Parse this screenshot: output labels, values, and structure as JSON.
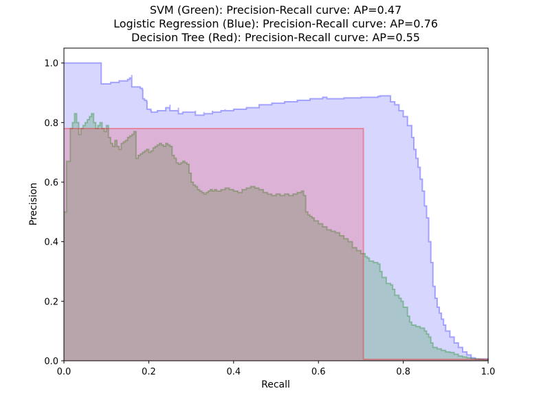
{
  "chart_data": {
    "type": "area",
    "title_lines": [
      "SVM (Green): Precision-Recall curve: AP=0.47",
      "Logistic Regression (Blue): Precision-Recall curve: AP=0.76",
      "Decision Tree (Red): Precision-Recall curve: AP=0.55"
    ],
    "xlabel": "Recall",
    "ylabel": "Precision",
    "xlim": [
      0.0,
      1.0
    ],
    "ylim": [
      0.0,
      1.05
    ],
    "xticks": [
      "0.0",
      "0.2",
      "0.4",
      "0.6",
      "0.8",
      "1.0"
    ],
    "yticks": [
      "0.0",
      "0.2",
      "0.4",
      "0.6",
      "0.8",
      "1.0"
    ],
    "grid": false,
    "step": "post",
    "series": [
      {
        "color": "#0000ff",
        "fill_alpha": 0.16,
        "points": [
          [
            0.0,
            1.0
          ],
          [
            0.088,
            1.0
          ],
          [
            0.088,
            0.93
          ],
          [
            0.11,
            0.935
          ],
          [
            0.13,
            0.94
          ],
          [
            0.15,
            0.945
          ],
          [
            0.155,
            0.95
          ],
          [
            0.16,
            0.96
          ],
          [
            0.16,
            0.92
          ],
          [
            0.18,
            0.915
          ],
          [
            0.185,
            0.91
          ],
          [
            0.186,
            0.88
          ],
          [
            0.19,
            0.875
          ],
          [
            0.195,
            0.87
          ],
          [
            0.196,
            0.845
          ],
          [
            0.2,
            0.845
          ],
          [
            0.205,
            0.84
          ],
          [
            0.206,
            0.835
          ],
          [
            0.22,
            0.84
          ],
          [
            0.24,
            0.85
          ],
          [
            0.25,
            0.86
          ],
          [
            0.25,
            0.84
          ],
          [
            0.27,
            0.85
          ],
          [
            0.27,
            0.83
          ],
          [
            0.28,
            0.835
          ],
          [
            0.29,
            0.835
          ],
          [
            0.31,
            0.84
          ],
          [
            0.31,
            0.825
          ],
          [
            0.33,
            0.835
          ],
          [
            0.33,
            0.83
          ],
          [
            0.35,
            0.84
          ],
          [
            0.35,
            0.835
          ],
          [
            0.37,
            0.84
          ],
          [
            0.38,
            0.845
          ],
          [
            0.38,
            0.84
          ],
          [
            0.4,
            0.84
          ],
          [
            0.4,
            0.845
          ],
          [
            0.43,
            0.85
          ],
          [
            0.46,
            0.86
          ],
          [
            0.49,
            0.865
          ],
          [
            0.52,
            0.87
          ],
          [
            0.55,
            0.875
          ],
          [
            0.58,
            0.88
          ],
          [
            0.61,
            0.885
          ],
          [
            0.62,
            0.88
          ],
          [
            0.66,
            0.883
          ],
          [
            0.7,
            0.885
          ],
          [
            0.74,
            0.888
          ],
          [
            0.745,
            0.89
          ],
          [
            0.77,
            0.87
          ],
          [
            0.78,
            0.86
          ],
          [
            0.79,
            0.84
          ],
          [
            0.8,
            0.82
          ],
          [
            0.81,
            0.79
          ],
          [
            0.82,
            0.75
          ],
          [
            0.825,
            0.71
          ],
          [
            0.83,
            0.68
          ],
          [
            0.835,
            0.65
          ],
          [
            0.84,
            0.61
          ],
          [
            0.845,
            0.57
          ],
          [
            0.85,
            0.52
          ],
          [
            0.855,
            0.48
          ],
          [
            0.86,
            0.4
          ],
          [
            0.865,
            0.33
          ],
          [
            0.87,
            0.25
          ],
          [
            0.875,
            0.21
          ],
          [
            0.88,
            0.18
          ],
          [
            0.885,
            0.16
          ],
          [
            0.89,
            0.14
          ],
          [
            0.895,
            0.12
          ],
          [
            0.9,
            0.1
          ],
          [
            0.91,
            0.08
          ],
          [
            0.92,
            0.06
          ],
          [
            0.93,
            0.045
          ],
          [
            0.94,
            0.03
          ],
          [
            0.95,
            0.02
          ],
          [
            0.96,
            0.01
          ],
          [
            0.97,
            0.006
          ],
          [
            1.0,
            0.003
          ]
        ]
      },
      {
        "color": "#008000",
        "fill_alpha": 0.2,
        "points": [
          [
            0.0,
            0.5
          ],
          [
            0.006,
            0.67
          ],
          [
            0.015,
            0.78
          ],
          [
            0.02,
            0.8
          ],
          [
            0.025,
            0.83
          ],
          [
            0.03,
            0.8
          ],
          [
            0.035,
            0.76
          ],
          [
            0.04,
            0.78
          ],
          [
            0.045,
            0.79
          ],
          [
            0.05,
            0.8
          ],
          [
            0.055,
            0.81
          ],
          [
            0.06,
            0.82
          ],
          [
            0.065,
            0.83
          ],
          [
            0.07,
            0.8
          ],
          [
            0.075,
            0.78
          ],
          [
            0.08,
            0.79
          ],
          [
            0.085,
            0.8
          ],
          [
            0.09,
            0.78
          ],
          [
            0.095,
            0.77
          ],
          [
            0.1,
            0.79
          ],
          [
            0.105,
            0.75
          ],
          [
            0.11,
            0.73
          ],
          [
            0.115,
            0.72
          ],
          [
            0.12,
            0.74
          ],
          [
            0.125,
            0.72
          ],
          [
            0.13,
            0.71
          ],
          [
            0.135,
            0.73
          ],
          [
            0.14,
            0.735
          ],
          [
            0.145,
            0.74
          ],
          [
            0.15,
            0.75
          ],
          [
            0.155,
            0.755
          ],
          [
            0.16,
            0.76
          ],
          [
            0.165,
            0.77
          ],
          [
            0.17,
            0.68
          ],
          [
            0.175,
            0.69
          ],
          [
            0.18,
            0.695
          ],
          [
            0.185,
            0.7
          ],
          [
            0.19,
            0.705
          ],
          [
            0.195,
            0.71
          ],
          [
            0.2,
            0.7
          ],
          [
            0.205,
            0.705
          ],
          [
            0.21,
            0.715
          ],
          [
            0.215,
            0.72
          ],
          [
            0.22,
            0.725
          ],
          [
            0.225,
            0.73
          ],
          [
            0.23,
            0.725
          ],
          [
            0.235,
            0.72
          ],
          [
            0.24,
            0.73
          ],
          [
            0.245,
            0.725
          ],
          [
            0.25,
            0.72
          ],
          [
            0.255,
            0.69
          ],
          [
            0.26,
            0.68
          ],
          [
            0.265,
            0.665
          ],
          [
            0.27,
            0.66
          ],
          [
            0.275,
            0.665
          ],
          [
            0.28,
            0.67
          ],
          [
            0.285,
            0.665
          ],
          [
            0.29,
            0.66
          ],
          [
            0.295,
            0.63
          ],
          [
            0.3,
            0.6
          ],
          [
            0.305,
            0.59
          ],
          [
            0.31,
            0.585
          ],
          [
            0.315,
            0.575
          ],
          [
            0.32,
            0.57
          ],
          [
            0.325,
            0.565
          ],
          [
            0.33,
            0.56
          ],
          [
            0.335,
            0.565
          ],
          [
            0.34,
            0.57
          ],
          [
            0.345,
            0.575
          ],
          [
            0.35,
            0.57
          ],
          [
            0.355,
            0.575
          ],
          [
            0.36,
            0.57
          ],
          [
            0.37,
            0.575
          ],
          [
            0.38,
            0.58
          ],
          [
            0.39,
            0.575
          ],
          [
            0.4,
            0.57
          ],
          [
            0.41,
            0.565
          ],
          [
            0.42,
            0.575
          ],
          [
            0.43,
            0.58
          ],
          [
            0.44,
            0.585
          ],
          [
            0.45,
            0.58
          ],
          [
            0.46,
            0.575
          ],
          [
            0.47,
            0.565
          ],
          [
            0.48,
            0.56
          ],
          [
            0.49,
            0.555
          ],
          [
            0.5,
            0.56
          ],
          [
            0.51,
            0.555
          ],
          [
            0.52,
            0.56
          ],
          [
            0.53,
            0.555
          ],
          [
            0.54,
            0.56
          ],
          [
            0.55,
            0.565
          ],
          [
            0.56,
            0.57
          ],
          [
            0.565,
            0.555
          ],
          [
            0.57,
            0.5
          ],
          [
            0.575,
            0.49
          ],
          [
            0.58,
            0.485
          ],
          [
            0.585,
            0.48
          ],
          [
            0.59,
            0.47
          ],
          [
            0.6,
            0.46
          ],
          [
            0.61,
            0.45
          ],
          [
            0.62,
            0.44
          ],
          [
            0.63,
            0.435
          ],
          [
            0.64,
            0.43
          ],
          [
            0.65,
            0.42
          ],
          [
            0.66,
            0.41
          ],
          [
            0.67,
            0.4
          ],
          [
            0.68,
            0.38
          ],
          [
            0.69,
            0.37
          ],
          [
            0.7,
            0.36
          ],
          [
            0.71,
            0.35
          ],
          [
            0.715,
            0.345
          ],
          [
            0.72,
            0.335
          ],
          [
            0.73,
            0.33
          ],
          [
            0.74,
            0.325
          ],
          [
            0.745,
            0.3
          ],
          [
            0.75,
            0.28
          ],
          [
            0.76,
            0.26
          ],
          [
            0.77,
            0.255
          ],
          [
            0.775,
            0.24
          ],
          [
            0.78,
            0.22
          ],
          [
            0.79,
            0.21
          ],
          [
            0.795,
            0.2
          ],
          [
            0.8,
            0.18
          ],
          [
            0.81,
            0.15
          ],
          [
            0.815,
            0.13
          ],
          [
            0.82,
            0.12
          ],
          [
            0.83,
            0.115
          ],
          [
            0.84,
            0.11
          ],
          [
            0.85,
            0.1
          ],
          [
            0.855,
            0.09
          ],
          [
            0.86,
            0.08
          ],
          [
            0.865,
            0.06
          ],
          [
            0.87,
            0.045
          ],
          [
            0.88,
            0.04
          ],
          [
            0.89,
            0.035
          ],
          [
            0.9,
            0.03
          ],
          [
            0.91,
            0.028
          ],
          [
            0.92,
            0.022
          ],
          [
            0.93,
            0.016
          ],
          [
            0.94,
            0.013
          ],
          [
            0.95,
            0.01
          ],
          [
            0.96,
            0.007
          ],
          [
            0.97,
            0.006
          ],
          [
            0.98,
            0.005
          ],
          [
            0.99,
            0.003
          ],
          [
            1.0,
            0.001
          ]
        ]
      },
      {
        "color": "#ff0000",
        "fill_alpha": 0.16,
        "points": [
          [
            0.0,
            0.78
          ],
          [
            0.706,
            0.78
          ],
          [
            0.706,
            0.005
          ],
          [
            1.0,
            0.005
          ]
        ]
      }
    ]
  }
}
